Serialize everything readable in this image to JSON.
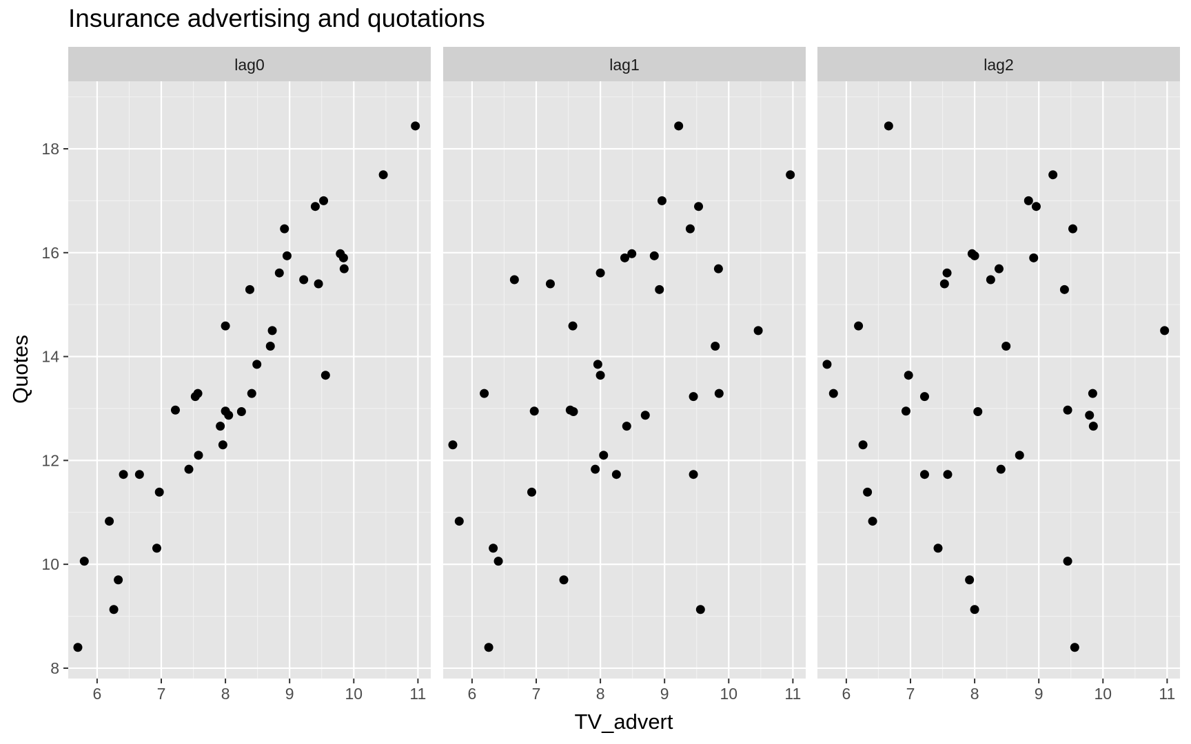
{
  "chart_data": {
    "type": "scatter",
    "title": "Insurance advertising and quotations",
    "xlabel": "TV_advert",
    "ylabel": "Quotes",
    "xlim": [
      5.55,
      11.2
    ],
    "ylim": [
      7.8,
      19.3
    ],
    "x_ticks": [
      6,
      7,
      8,
      9,
      10,
      11
    ],
    "y_ticks": [
      8,
      10,
      12,
      14,
      16,
      18
    ],
    "grid": true,
    "point_color": "#000000",
    "panel_background": "#e5e5e5",
    "strip_background": "#d0d0d0",
    "panels": [
      {
        "label": "lag0",
        "points": [
          [
            5.7,
            8.4
          ],
          [
            5.8,
            10.06
          ],
          [
            6.19,
            10.83
          ],
          [
            6.26,
            9.13
          ],
          [
            6.33,
            9.7
          ],
          [
            6.41,
            11.73
          ],
          [
            6.66,
            11.73
          ],
          [
            6.93,
            10.31
          ],
          [
            6.97,
            11.39
          ],
          [
            7.22,
            12.97
          ],
          [
            7.43,
            11.83
          ],
          [
            7.53,
            13.23
          ],
          [
            7.57,
            13.29
          ],
          [
            7.58,
            12.1
          ],
          [
            7.92,
            12.66
          ],
          [
            7.96,
            12.3
          ],
          [
            8.0,
            14.59
          ],
          [
            8.0,
            12.95
          ],
          [
            8.05,
            12.87
          ],
          [
            8.25,
            12.94
          ],
          [
            8.38,
            15.29
          ],
          [
            8.41,
            13.29
          ],
          [
            8.49,
            13.85
          ],
          [
            8.7,
            14.2
          ],
          [
            8.73,
            14.5
          ],
          [
            8.84,
            15.61
          ],
          [
            8.92,
            16.46
          ],
          [
            8.96,
            15.94
          ],
          [
            9.22,
            15.48
          ],
          [
            9.4,
            16.89
          ],
          [
            9.45,
            15.4
          ],
          [
            9.53,
            17.0
          ],
          [
            9.56,
            13.64
          ],
          [
            9.79,
            15.98
          ],
          [
            9.84,
            15.9
          ],
          [
            9.85,
            15.69
          ],
          [
            10.46,
            17.5
          ],
          [
            10.96,
            18.44
          ]
        ]
      },
      {
        "label": "lag1",
        "points": [
          [
            5.7,
            12.3
          ],
          [
            5.8,
            10.83
          ],
          [
            6.19,
            13.29
          ],
          [
            6.26,
            8.4
          ],
          [
            6.33,
            10.31
          ],
          [
            6.41,
            10.06
          ],
          [
            6.66,
            15.48
          ],
          [
            6.93,
            11.39
          ],
          [
            6.97,
            12.95
          ],
          [
            7.22,
            15.4
          ],
          [
            7.43,
            9.7
          ],
          [
            7.53,
            12.97
          ],
          [
            7.57,
            14.59
          ],
          [
            7.58,
            12.94
          ],
          [
            7.92,
            11.83
          ],
          [
            7.96,
            13.85
          ],
          [
            8.0,
            15.61
          ],
          [
            8.0,
            13.64
          ],
          [
            8.05,
            12.1
          ],
          [
            8.25,
            11.73
          ],
          [
            8.38,
            15.9
          ],
          [
            8.41,
            12.66
          ],
          [
            8.49,
            15.98
          ],
          [
            8.7,
            12.87
          ],
          [
            8.84,
            15.94
          ],
          [
            8.92,
            15.29
          ],
          [
            8.96,
            17.0
          ],
          [
            9.22,
            18.44
          ],
          [
            9.4,
            16.46
          ],
          [
            9.45,
            13.23
          ],
          [
            9.45,
            11.73
          ],
          [
            9.53,
            16.89
          ],
          [
            9.56,
            9.13
          ],
          [
            9.79,
            14.2
          ],
          [
            9.84,
            15.69
          ],
          [
            9.85,
            13.29
          ],
          [
            10.46,
            14.5
          ],
          [
            10.96,
            17.5
          ]
        ]
      },
      {
        "label": "lag2",
        "points": [
          [
            5.7,
            13.85
          ],
          [
            5.8,
            13.29
          ],
          [
            6.19,
            14.59
          ],
          [
            6.26,
            12.3
          ],
          [
            6.33,
            11.39
          ],
          [
            6.41,
            10.83
          ],
          [
            6.66,
            18.44
          ],
          [
            6.93,
            12.95
          ],
          [
            6.97,
            13.64
          ],
          [
            7.22,
            13.23
          ],
          [
            7.22,
            11.73
          ],
          [
            7.43,
            10.31
          ],
          [
            7.53,
            15.4
          ],
          [
            7.57,
            15.61
          ],
          [
            7.58,
            11.73
          ],
          [
            7.92,
            9.7
          ],
          [
            7.96,
            15.98
          ],
          [
            8.0,
            15.94
          ],
          [
            8.0,
            9.13
          ],
          [
            8.05,
            12.94
          ],
          [
            8.25,
            15.48
          ],
          [
            8.38,
            15.69
          ],
          [
            8.41,
            11.83
          ],
          [
            8.49,
            14.2
          ],
          [
            8.7,
            12.1
          ],
          [
            8.84,
            17.0
          ],
          [
            8.92,
            15.9
          ],
          [
            8.96,
            16.89
          ],
          [
            9.22,
            17.5
          ],
          [
            9.4,
            15.29
          ],
          [
            9.45,
            12.97
          ],
          [
            9.45,
            10.06
          ],
          [
            9.53,
            16.46
          ],
          [
            9.56,
            8.4
          ],
          [
            9.79,
            12.87
          ],
          [
            9.84,
            13.29
          ],
          [
            9.85,
            12.66
          ],
          [
            10.96,
            14.5
          ]
        ]
      }
    ]
  }
}
